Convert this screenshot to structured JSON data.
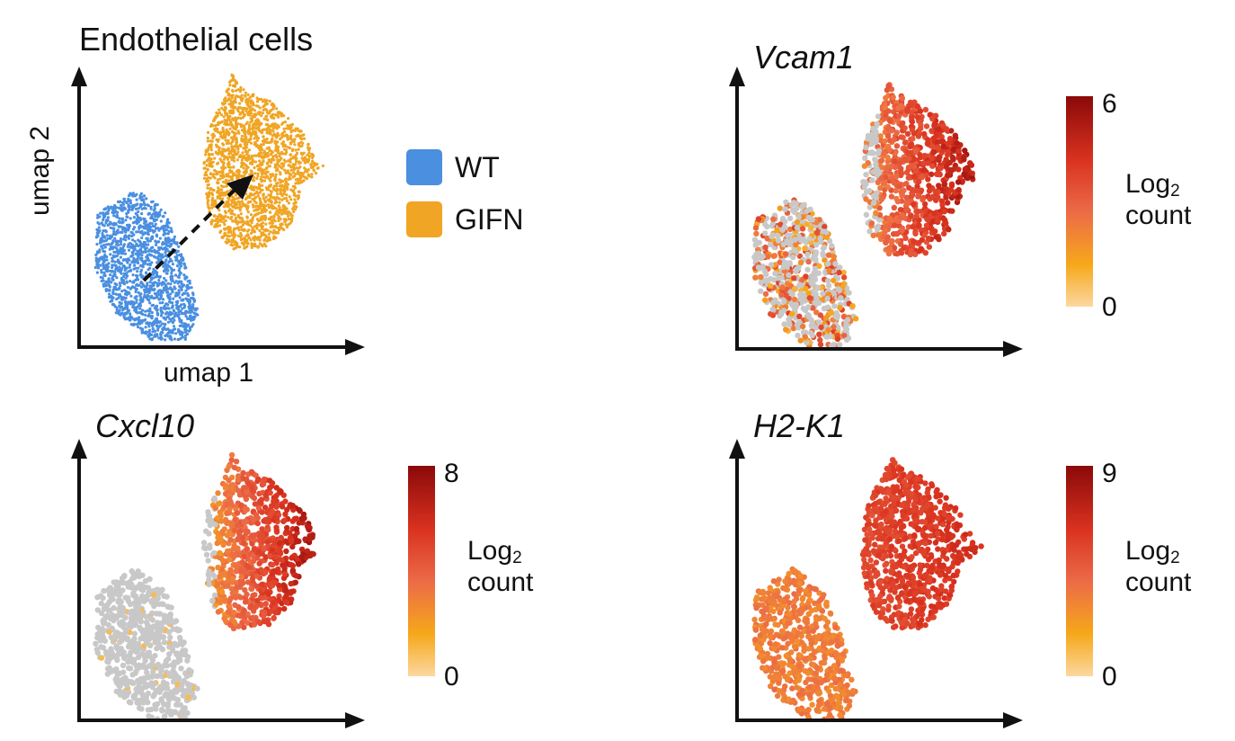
{
  "chart_data": [
    {
      "type": "scatter",
      "title": "Endothelial cells",
      "xlabel": "umap 1",
      "ylabel": "umap 2",
      "legend": [
        {
          "name": "WT",
          "color": "#4a8fe0"
        },
        {
          "name": "GIFN",
          "color": "#f0a524"
        }
      ],
      "annotation": "dashed arrow from WT cluster to GIFN cluster",
      "clusters": [
        {
          "name": "WT",
          "center": [
            0.2,
            0.2
          ],
          "extent": "lower-left elongated cloud"
        },
        {
          "name": "GIFN",
          "center": [
            0.6,
            0.62
          ],
          "extent": "upper-right rounded cloud"
        }
      ]
    },
    {
      "type": "scatter",
      "title": "Vcam1",
      "colorbar": {
        "label_main": "Log",
        "label_sub": "2",
        "label_line2": "count",
        "min": "0",
        "max": "6"
      },
      "expression": {
        "WT": "low/sparse",
        "GIFN": "high, strongest on right side"
      }
    },
    {
      "type": "scatter",
      "title": "Cxcl10",
      "colorbar": {
        "label_main": "Log",
        "label_sub": "2",
        "label_line2": "count",
        "min": "0",
        "max": "8"
      },
      "expression": {
        "WT": "mostly zero",
        "GIFN": "high, strongest on right side"
      }
    },
    {
      "type": "scatter",
      "title": "H2-K1",
      "colorbar": {
        "label_main": "Log",
        "label_sub": "2",
        "label_line2": "count",
        "min": "0",
        "max": "9"
      },
      "expression": {
        "WT": "moderate",
        "GIFN": "high"
      }
    }
  ],
  "colors": {
    "zero": "#c8c8c8",
    "low": "#fcd7a0",
    "mid": "#ec6b47",
    "high": "#8a0909"
  }
}
